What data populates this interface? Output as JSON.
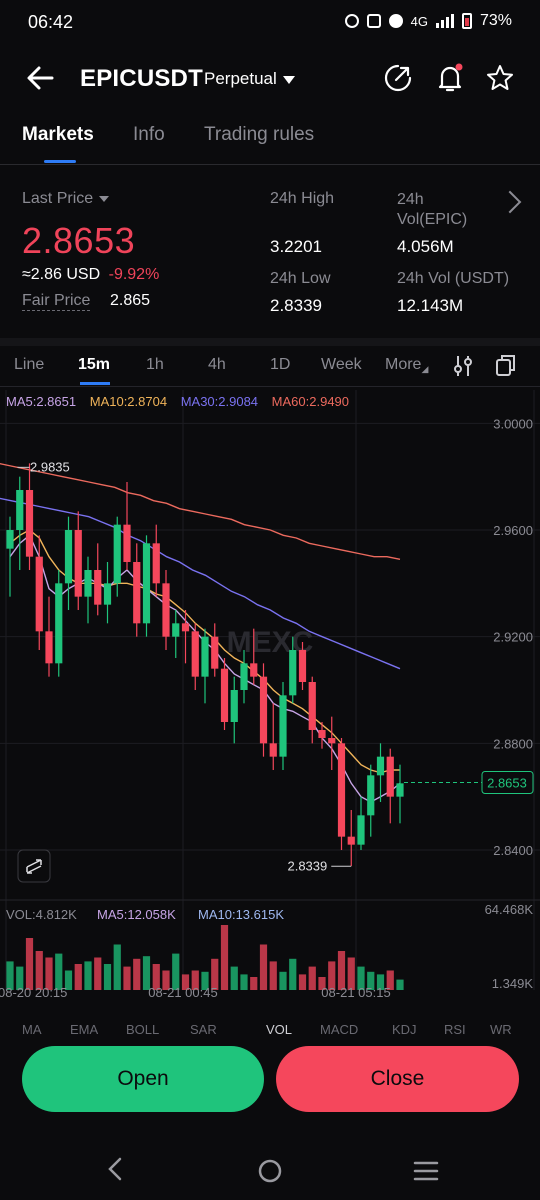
{
  "status_bar": {
    "time": "06:42",
    "network": "4G",
    "battery": "73%"
  },
  "header": {
    "symbol": "EPICUSDT",
    "contract_type": "Perpetual"
  },
  "tabs": [
    {
      "label": "Markets"
    },
    {
      "label": "Info"
    },
    {
      "label": "Trading rules"
    }
  ],
  "stats": {
    "last_price_label": "Last Price",
    "last_price": "2.8653",
    "usd_price": "≈2.86 USD",
    "change": "-9.92%",
    "fair_price_label": "Fair Price",
    "fair_price": "2.865",
    "high_label": "24h High",
    "high": "3.2201",
    "vol_epic_label": "24h Vol(EPIC)",
    "vol_epic": "4.056M",
    "low_label": "24h Low",
    "low": "2.8339",
    "vol_usdt_label": "24h Vol (USDT)",
    "vol_usdt": "12.143M"
  },
  "timeframes": [
    "Line",
    "15m",
    "1h",
    "4h",
    "1D",
    "Week",
    "More"
  ],
  "chart_data": {
    "type": "candlestick",
    "ma": [
      {
        "label": "MA5:2.8651",
        "color": "#c7a4e6"
      },
      {
        "label": "MA10:2.8704",
        "color": "#f0b45a"
      },
      {
        "label": "MA30:2.9084",
        "color": "#7a72f0"
      },
      {
        "label": "MA60:2.9490",
        "color": "#ec6a5e"
      }
    ],
    "y_ticks": [
      "3.0000",
      "2.9600",
      "2.9200",
      "2.8800",
      "2.8400"
    ],
    "ylim": [
      2.825,
      3.005
    ],
    "high_label": "2.9835",
    "low_label": "2.8339",
    "current_price": "2.8653",
    "watermark": "MEXC",
    "volume": {
      "vol_label": "VOL:4.812K",
      "ma5_label": "MA5:12.058K",
      "ma10_label": "MA10:13.615K",
      "max_label": "64.468K",
      "min_label": "1.349K"
    },
    "x_labels": [
      "08-20 20:15",
      "08-21 00:45",
      "08-21 05:15"
    ],
    "candles": [
      [
        2.953,
        2.965,
        2.935,
        2.96
      ],
      [
        2.96,
        2.98,
        2.945,
        2.975
      ],
      [
        2.975,
        2.985,
        2.945,
        2.95
      ],
      [
        2.95,
        2.958,
        2.915,
        2.922
      ],
      [
        2.922,
        2.935,
        2.905,
        2.91
      ],
      [
        2.91,
        2.945,
        2.905,
        2.94
      ],
      [
        2.94,
        2.965,
        2.93,
        2.96
      ],
      [
        2.96,
        2.967,
        2.93,
        2.935
      ],
      [
        2.935,
        2.95,
        2.925,
        2.945
      ],
      [
        2.945,
        2.955,
        2.928,
        2.932
      ],
      [
        2.932,
        2.948,
        2.925,
        2.94
      ],
      [
        2.94,
        2.965,
        2.935,
        2.962
      ],
      [
        2.962,
        2.978,
        2.945,
        2.948
      ],
      [
        2.948,
        2.955,
        2.92,
        2.925
      ],
      [
        2.925,
        2.958,
        2.92,
        2.955
      ],
      [
        2.955,
        2.962,
        2.935,
        2.94
      ],
      [
        2.94,
        2.945,
        2.915,
        2.92
      ],
      [
        2.92,
        2.93,
        2.912,
        2.925
      ],
      [
        2.925,
        2.93,
        2.91,
        2.922
      ],
      [
        2.922,
        2.925,
        2.9,
        2.905
      ],
      [
        2.905,
        2.923,
        2.895,
        2.92
      ],
      [
        2.92,
        2.925,
        2.905,
        2.908
      ],
      [
        2.908,
        2.912,
        2.885,
        2.888
      ],
      [
        2.888,
        2.905,
        2.88,
        2.9
      ],
      [
        2.9,
        2.915,
        2.895,
        2.91
      ],
      [
        2.91,
        2.923,
        2.902,
        2.905
      ],
      [
        2.905,
        2.91,
        2.875,
        2.88
      ],
      [
        2.88,
        2.895,
        2.87,
        2.875
      ],
      [
        2.875,
        2.903,
        2.87,
        2.898
      ],
      [
        2.898,
        2.92,
        2.895,
        2.915
      ],
      [
        2.915,
        2.918,
        2.9,
        2.903
      ],
      [
        2.903,
        2.905,
        2.88,
        2.885
      ],
      [
        2.885,
        2.888,
        2.878,
        2.882
      ],
      [
        2.882,
        2.89,
        2.87,
        2.88
      ],
      [
        2.88,
        2.882,
        2.84,
        2.845
      ],
      [
        2.845,
        2.855,
        2.834,
        2.842
      ],
      [
        2.842,
        2.86,
        2.84,
        2.853
      ],
      [
        2.853,
        2.872,
        2.845,
        2.868
      ],
      [
        2.868,
        2.88,
        2.858,
        2.875
      ],
      [
        2.875,
        2.878,
        2.85,
        2.86
      ],
      [
        2.86,
        2.872,
        2.85,
        2.865
      ]
    ],
    "volumes": [
      22,
      18,
      40,
      30,
      25,
      28,
      15,
      20,
      22,
      25,
      20,
      35,
      18,
      24,
      26,
      20,
      15,
      28,
      12,
      15,
      14,
      24,
      50,
      18,
      12,
      10,
      35,
      22,
      14,
      24,
      12,
      18,
      10,
      22,
      30,
      25,
      18,
      14,
      12,
      15,
      8
    ],
    "ma_lines": {
      "ma5": [
        2.95,
        2.955,
        2.958,
        2.95,
        2.938,
        2.935,
        2.938,
        2.94,
        2.942,
        2.94,
        2.938,
        2.942,
        2.945,
        2.941,
        2.938,
        2.935,
        2.932,
        2.93,
        2.926,
        2.922,
        2.918,
        2.915,
        2.91,
        2.906,
        2.904,
        2.902,
        2.9,
        2.895,
        2.893,
        2.892,
        2.89,
        2.888,
        2.882,
        2.878,
        2.872,
        2.865,
        2.86,
        2.858,
        2.86,
        2.862,
        2.865
      ],
      "ma10": [
        2.955,
        2.958,
        2.96,
        2.957,
        2.95,
        2.945,
        2.942,
        2.94,
        2.94,
        2.94,
        2.939,
        2.94,
        2.94,
        2.939,
        2.938,
        2.936,
        2.935,
        2.932,
        2.929,
        2.925,
        2.922,
        2.919,
        2.915,
        2.912,
        2.91,
        2.907,
        2.904,
        2.9,
        2.897,
        2.895,
        2.893,
        2.89,
        2.887,
        2.884,
        2.88,
        2.876,
        2.872,
        2.87,
        2.869,
        2.87,
        2.87
      ],
      "ma30": [
        2.972,
        2.971,
        2.97,
        2.969,
        2.968,
        2.967,
        2.966,
        2.965,
        2.963,
        2.961,
        2.958,
        2.956,
        2.953,
        2.95,
        2.948,
        2.945,
        2.943,
        2.94,
        2.937,
        2.935,
        2.932,
        2.93,
        2.927,
        2.925,
        2.922,
        2.92,
        2.918,
        2.916,
        2.914,
        2.912,
        2.91,
        2.908
      ],
      "ma60": [
        2.985,
        2.984,
        2.983,
        2.982,
        2.981,
        2.98,
        2.979,
        2.978,
        2.977,
        2.976,
        2.974,
        2.973,
        2.971,
        2.97,
        2.968,
        2.967,
        2.966,
        2.965,
        2.964,
        2.962,
        2.961,
        2.96,
        2.958,
        2.957,
        2.955,
        2.954,
        2.953,
        2.952,
        2.951,
        2.95,
        2.95,
        2.949
      ]
    },
    "colors": {
      "up": "#1fc47c",
      "down": "#f5475c"
    }
  },
  "sub_indicators": [
    "MA",
    "EMA",
    "BOLL",
    "SAR",
    "VOL",
    "MACD",
    "KDJ",
    "RSI",
    "WR"
  ],
  "actions": {
    "open_label": "Open",
    "close_label": "Close"
  }
}
